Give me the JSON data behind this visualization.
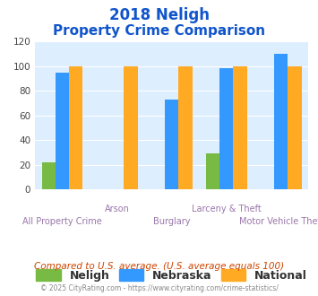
{
  "title_line1": "2018 Neligh",
  "title_line2": "Property Crime Comparison",
  "categories": [
    "All Property Crime",
    "Arson",
    "Burglary",
    "Larceny & Theft",
    "Motor Vehicle Theft"
  ],
  "neligh": [
    22,
    0,
    0,
    29,
    0
  ],
  "nebraska": [
    95,
    0,
    73,
    98,
    110
  ],
  "national": [
    100,
    100,
    100,
    100,
    100
  ],
  "neligh_color": "#77bb44",
  "nebraska_color": "#3399ff",
  "national_color": "#ffaa22",
  "title_color": "#1155cc",
  "xlabel_color": "#9977aa",
  "ylabel_max": 120,
  "ylabel_ticks": [
    0,
    20,
    40,
    60,
    80,
    100,
    120
  ],
  "background_color": "#ddeeff",
  "footer_text": "Compared to U.S. average. (U.S. average equals 100)",
  "copyright_text": "© 2025 CityRating.com - https://www.cityrating.com/crime-statistics/",
  "footer_color": "#cc4400",
  "copyright_color": "#888888",
  "bar_width": 0.25
}
